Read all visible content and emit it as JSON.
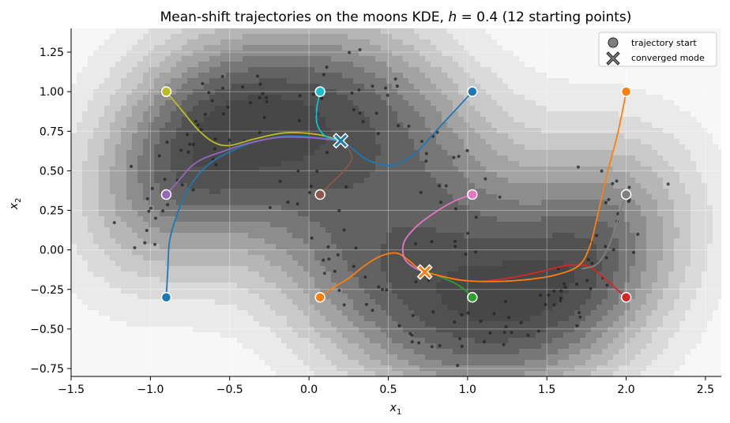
{
  "chart_data": {
    "type": "scatter",
    "title": "Mean-shift trajectories on the moons KDE, h = 0.4 (12 starting points)",
    "title_parts": {
      "prefix": "Mean-shift trajectories on the moons KDE, ",
      "var": "h",
      "mid": " = 0.4 (12 starting points)"
    },
    "xlabel": {
      "var": "x",
      "sub": "1"
    },
    "ylabel": {
      "var": "x",
      "sub": "2"
    },
    "xlim": [
      -1.5,
      2.6
    ],
    "ylim": [
      -0.8,
      1.4
    ],
    "xticks": [
      -1.5,
      -1.0,
      -0.5,
      0.0,
      0.5,
      1.0,
      1.5,
      2.0,
      2.5
    ],
    "xtick_labels": [
      "−1.5",
      "−1.0",
      "−0.5",
      "0.0",
      "0.5",
      "1.0",
      "1.5",
      "2.0",
      "2.5"
    ],
    "yticks": [
      -0.75,
      -0.5,
      -0.25,
      0.0,
      0.25,
      0.5,
      0.75,
      1.0,
      1.25
    ],
    "ytick_labels": [
      "−0.75",
      "−0.50",
      "−0.25",
      "0.00",
      "0.25",
      "0.50",
      "0.75",
      "1.00",
      "1.25"
    ],
    "grid": true,
    "legend": {
      "placement": "top-right",
      "entries": [
        {
          "label": "trajectory start",
          "marker": "circle"
        },
        {
          "label": "converged mode",
          "marker": "x"
        }
      ]
    },
    "modes": [
      {
        "x": 0.2,
        "y": 0.69,
        "color": "#1f77b4"
      },
      {
        "x": 0.73,
        "y": -0.14,
        "color": "#ff7f0e"
      }
    ],
    "trajectories": [
      {
        "color": "#1f77b4",
        "start": [
          -0.9,
          -0.3
        ],
        "path": [
          [
            -0.9,
            -0.3
          ],
          [
            -0.89,
            -0.12
          ],
          [
            -0.88,
            0.05
          ],
          [
            -0.84,
            0.2
          ],
          [
            -0.78,
            0.35
          ],
          [
            -0.71,
            0.46
          ],
          [
            -0.62,
            0.55
          ],
          [
            -0.5,
            0.62
          ],
          [
            -0.35,
            0.68
          ],
          [
            -0.15,
            0.72
          ],
          [
            0.05,
            0.71
          ],
          [
            0.2,
            0.69
          ]
        ]
      },
      {
        "color": "#ff7f0e",
        "start": [
          0.07,
          -0.3
        ],
        "path": [
          [
            0.07,
            -0.3
          ],
          [
            0.15,
            -0.24
          ],
          [
            0.25,
            -0.18
          ],
          [
            0.35,
            -0.1
          ],
          [
            0.45,
            -0.04
          ],
          [
            0.55,
            -0.02
          ],
          [
            0.62,
            -0.06
          ],
          [
            0.68,
            -0.11
          ],
          [
            0.73,
            -0.14
          ]
        ]
      },
      {
        "color": "#2ca02c",
        "start": [
          1.03,
          -0.3
        ],
        "path": [
          [
            1.03,
            -0.3
          ],
          [
            0.98,
            -0.25
          ],
          [
            0.92,
            -0.21
          ],
          [
            0.85,
            -0.18
          ],
          [
            0.78,
            -0.15
          ],
          [
            0.73,
            -0.14
          ]
        ]
      },
      {
        "color": "#d62728",
        "start": [
          2.0,
          -0.3
        ],
        "path": [
          [
            2.0,
            -0.3
          ],
          [
            1.92,
            -0.23
          ],
          [
            1.84,
            -0.16
          ],
          [
            1.75,
            -0.1
          ],
          [
            1.62,
            -0.1
          ],
          [
            1.45,
            -0.14
          ],
          [
            1.25,
            -0.18
          ],
          [
            1.05,
            -0.2
          ],
          [
            0.9,
            -0.18
          ],
          [
            0.73,
            -0.14
          ]
        ]
      },
      {
        "color": "#9467bd",
        "start": [
          -0.9,
          0.35
        ],
        "path": [
          [
            -0.9,
            0.35
          ],
          [
            -0.82,
            0.44
          ],
          [
            -0.74,
            0.53
          ],
          [
            -0.66,
            0.58
          ],
          [
            -0.55,
            0.62
          ],
          [
            -0.4,
            0.67
          ],
          [
            -0.2,
            0.71
          ],
          [
            0.0,
            0.71
          ],
          [
            0.2,
            0.69
          ]
        ]
      },
      {
        "color": "#8c564b",
        "start": [
          0.07,
          0.35
        ],
        "path": [
          [
            0.07,
            0.35
          ],
          [
            0.14,
            0.42
          ],
          [
            0.22,
            0.5
          ],
          [
            0.27,
            0.58
          ],
          [
            0.24,
            0.65
          ],
          [
            0.2,
            0.69
          ]
        ]
      },
      {
        "color": "#e377c2",
        "start": [
          1.03,
          0.35
        ],
        "path": [
          [
            1.03,
            0.35
          ],
          [
            0.92,
            0.31
          ],
          [
            0.8,
            0.24
          ],
          [
            0.68,
            0.15
          ],
          [
            0.6,
            0.05
          ],
          [
            0.6,
            -0.05
          ],
          [
            0.66,
            -0.11
          ],
          [
            0.73,
            -0.14
          ]
        ]
      },
      {
        "color": "#7f7f7f",
        "start": [
          2.0,
          0.35
        ],
        "path": [
          [
            2.0,
            0.35
          ],
          [
            1.95,
            0.2
          ],
          [
            1.9,
            0.05
          ],
          [
            1.85,
            -0.05
          ],
          [
            1.8,
            -0.1
          ],
          [
            1.72,
            -0.12
          ]
        ]
      },
      {
        "color": "#bcbd22",
        "start": [
          -0.9,
          1.0
        ],
        "path": [
          [
            -0.9,
            1.0
          ],
          [
            -0.8,
            0.88
          ],
          [
            -0.7,
            0.76
          ],
          [
            -0.6,
            0.68
          ],
          [
            -0.5,
            0.66
          ],
          [
            -0.35,
            0.7
          ],
          [
            -0.15,
            0.74
          ],
          [
            0.05,
            0.73
          ],
          [
            0.2,
            0.69
          ]
        ]
      },
      {
        "color": "#17becf",
        "start": [
          0.07,
          1.0
        ],
        "path": [
          [
            0.07,
            1.0
          ],
          [
            0.05,
            0.9
          ],
          [
            0.05,
            0.8
          ],
          [
            0.09,
            0.73
          ],
          [
            0.15,
            0.7
          ],
          [
            0.2,
            0.69
          ]
        ]
      },
      {
        "color": "#1f77b4",
        "start": [
          1.03,
          1.0
        ],
        "path": [
          [
            1.03,
            1.0
          ],
          [
            0.92,
            0.88
          ],
          [
            0.8,
            0.75
          ],
          [
            0.68,
            0.62
          ],
          [
            0.55,
            0.54
          ],
          [
            0.45,
            0.54
          ],
          [
            0.35,
            0.58
          ],
          [
            0.26,
            0.65
          ],
          [
            0.2,
            0.69
          ]
        ]
      },
      {
        "color": "#ff7f0e",
        "start": [
          2.0,
          1.0
        ],
        "path": [
          [
            2.0,
            1.0
          ],
          [
            1.95,
            0.75
          ],
          [
            1.88,
            0.48
          ],
          [
            1.82,
            0.22
          ],
          [
            1.77,
            0.02
          ],
          [
            1.7,
            -0.1
          ],
          [
            1.55,
            -0.16
          ],
          [
            1.35,
            -0.19
          ],
          [
            1.15,
            -0.2
          ],
          [
            0.95,
            -0.19
          ],
          [
            0.73,
            -0.14
          ]
        ]
      }
    ],
    "kde_shading": [
      "#f7f7f7",
      "#eaeaea",
      "#dadada",
      "#c9c9c9",
      "#b6b6b6",
      "#a3a3a3",
      "#8d8d8d",
      "#777777",
      "#626262",
      "#515151",
      "#474747"
    ],
    "sample_color": "#222222"
  }
}
